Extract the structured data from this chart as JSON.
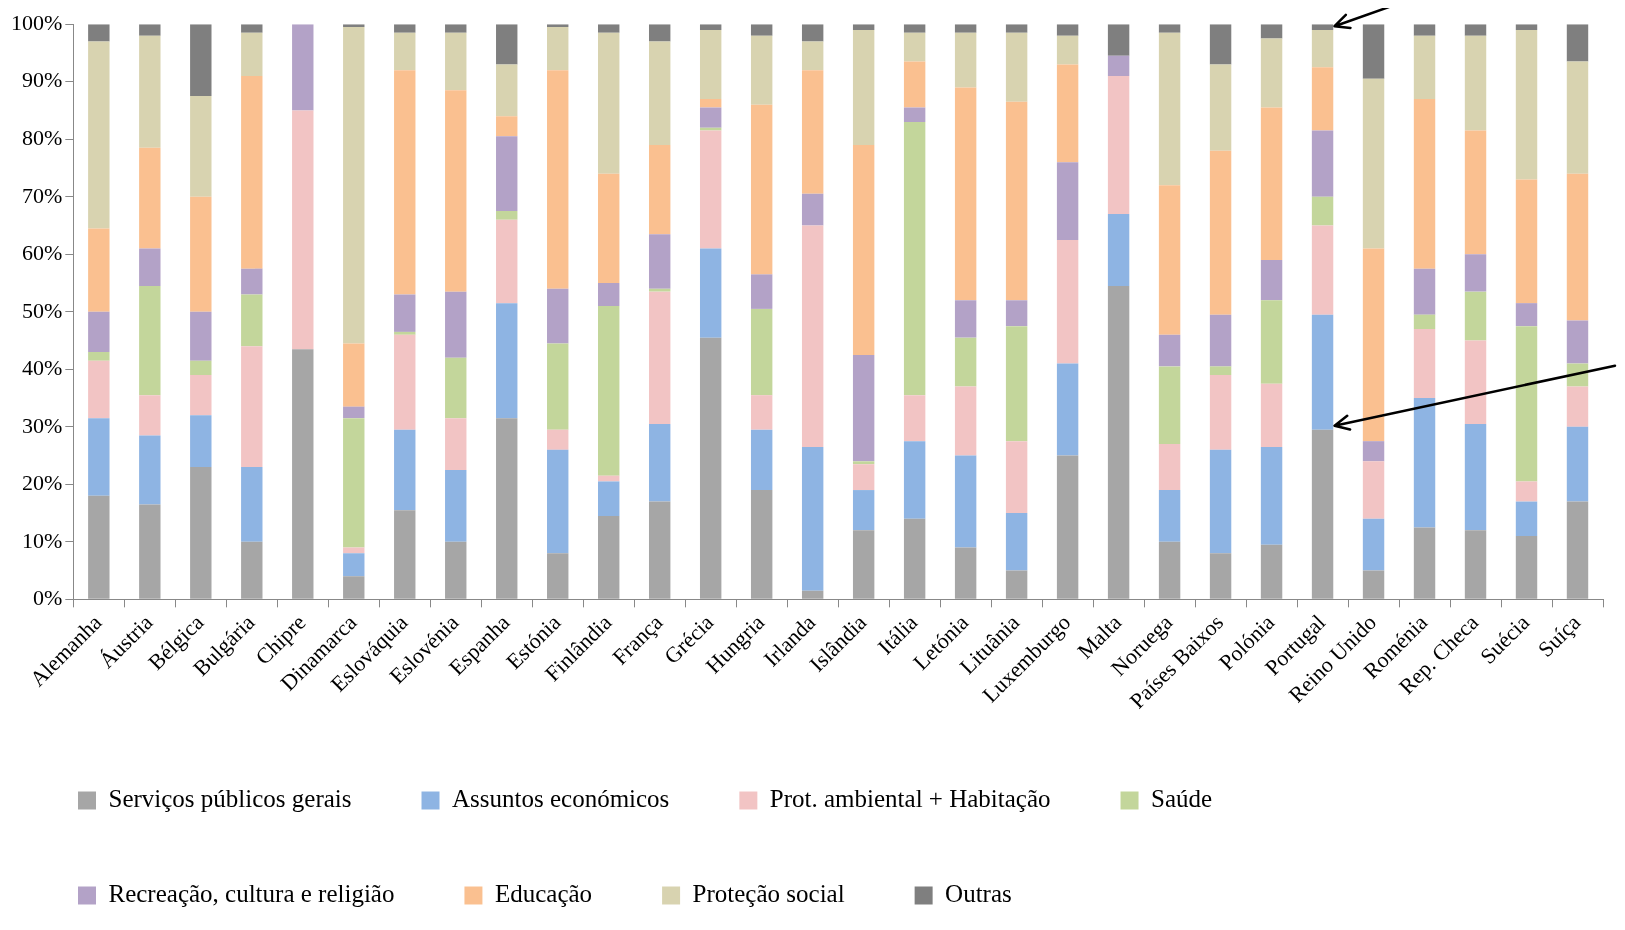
{
  "chart_data": {
    "type": "bar",
    "stacked": true,
    "grid": false,
    "legend": "bottom",
    "categories": [
      "Alemanha",
      "Áustria",
      "Bélgica",
      "Bulgária",
      "Chipre",
      "Dinamarca",
      "Eslováquia",
      "Eslovénia",
      "Espanha",
      "Estónia",
      "Finlândia",
      "França",
      "Grécia",
      "Hungria",
      "Irlanda",
      "Islândia",
      "Itália",
      "Letónia",
      "Lituânia",
      "Luxemburgo",
      "Malta",
      "Noruega",
      "Países Baixos",
      "Polónia",
      "Portugal",
      "Reino Unido",
      "Roménia",
      "Rep. Checa",
      "Suécia",
      "Suíça"
    ],
    "ylim": [
      0,
      100
    ],
    "yticks": [
      {
        "value": 0,
        "label": "0%"
      },
      {
        "value": 10,
        "label": "10%"
      },
      {
        "value": 20,
        "label": "20%"
      },
      {
        "value": 30,
        "label": "30%"
      },
      {
        "value": 40,
        "label": "40%"
      },
      {
        "value": 50,
        "label": "50%"
      },
      {
        "value": 60,
        "label": "60%"
      },
      {
        "value": 70,
        "label": "70%"
      },
      {
        "value": 80,
        "label": "80%"
      },
      {
        "value": 90,
        "label": "90%"
      },
      {
        "value": 100,
        "label": "100%"
      }
    ],
    "series": [
      {
        "name": "Serviços públicos gerais",
        "color": "#a6a6a6",
        "values": [
          18,
          16.5,
          23,
          10,
          43.5,
          4,
          15.5,
          10,
          31.5,
          8,
          14.5,
          17,
          45.5,
          19,
          1.5,
          12,
          14,
          9,
          5,
          25,
          54.5,
          10,
          8,
          9.5,
          29.5,
          5,
          12.5,
          12,
          11,
          17
        ]
      },
      {
        "name": "Assuntos económicos",
        "color": "#8eb4e3",
        "values": [
          13.5,
          12,
          9,
          13,
          0,
          4,
          14,
          12.5,
          20,
          18,
          6,
          13.5,
          15.5,
          10.5,
          25,
          7,
          13.5,
          16,
          10,
          16,
          12.5,
          9,
          18,
          17,
          20,
          9,
          22.5,
          18.5,
          6,
          13
        ]
      },
      {
        "name": "Prot. ambiental + Habitação",
        "color": "#f2c4c4",
        "values": [
          10,
          7,
          7,
          21,
          41.5,
          1,
          16.5,
          9,
          14.5,
          3.5,
          1,
          23,
          20.5,
          6,
          38.5,
          4.5,
          8,
          12,
          12.5,
          21.5,
          24,
          8,
          13,
          11,
          15.5,
          10,
          12,
          14.5,
          3.5,
          7
        ]
      },
      {
        "name": "Saúde",
        "color": "#c3d69b",
        "values": [
          1.5,
          19,
          2.5,
          9,
          0,
          22.5,
          0.5,
          10.5,
          1.5,
          15,
          29.5,
          0.5,
          0.5,
          15,
          0,
          0.5,
          47.5,
          8.5,
          20,
          0,
          0,
          13.5,
          1.5,
          14.5,
          5,
          0,
          2.5,
          8.5,
          27,
          4
        ]
      },
      {
        "name": "Recreação, cultura e religião",
        "color": "#b3a2c7",
        "values": [
          7,
          6.5,
          8.5,
          4.5,
          15,
          2,
          6.5,
          11.5,
          13,
          9.5,
          4,
          9.5,
          3.5,
          6,
          5.5,
          18.5,
          2.5,
          6.5,
          4.5,
          13.5,
          3.5,
          5.5,
          9,
          7,
          11.5,
          3.5,
          8,
          6.5,
          4,
          7.5
        ]
      },
      {
        "name": "Educação",
        "color": "#fac090",
        "values": [
          14.5,
          17.5,
          20,
          33.5,
          0,
          11,
          39,
          35,
          3.5,
          38,
          19,
          15.5,
          1.5,
          29.5,
          21.5,
          36.5,
          8,
          37,
          34.5,
          17,
          0,
          26,
          28.5,
          26.5,
          11,
          33.5,
          29.5,
          21.5,
          21.5,
          25.5
        ]
      },
      {
        "name": "Proteção social",
        "color": "#d8d3b0",
        "values": [
          32.5,
          19.5,
          17.5,
          7.5,
          0,
          55,
          6.5,
          10,
          9,
          7.5,
          24.5,
          18,
          12,
          12,
          5,
          20,
          5,
          9.5,
          12,
          5,
          0,
          26.5,
          15,
          12,
          6.5,
          29.5,
          11,
          16.5,
          26,
          19.5
        ]
      },
      {
        "name": "Outras",
        "color": "#7f7f7f",
        "values": [
          3,
          2,
          12.5,
          1.5,
          0,
          0.5,
          1.5,
          1.5,
          7,
          0.5,
          1.5,
          3,
          1,
          2,
          3,
          1,
          1.5,
          1.5,
          1.5,
          2,
          5.5,
          1.5,
          7,
          2.5,
          1,
          9.5,
          2,
          2,
          1,
          6.5
        ]
      }
    ]
  }
}
